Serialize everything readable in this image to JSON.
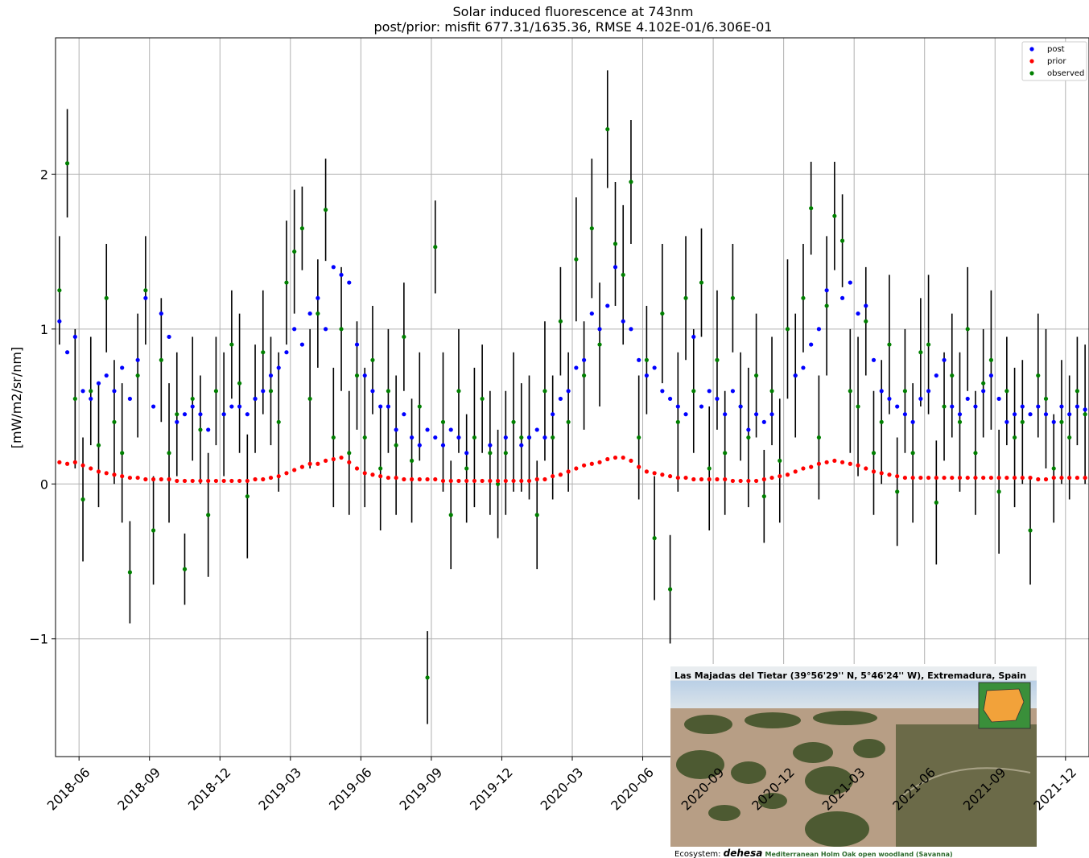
{
  "chart_data": {
    "type": "scatter",
    "title": "Solar induced fluorescence at 743nm",
    "subtitle": "post/prior: misfit 677.31/1635.36, RMSE 4.102E-01/6.306E-01",
    "y_label": "[mW/m2/sr/nm]",
    "x": [
      "2018-05",
      "2018-05",
      "2018-05",
      "2018-06",
      "2018-06",
      "2018-06",
      "2018-07",
      "2018-07",
      "2018-07",
      "2018-08",
      "2018-08",
      "2018-08",
      "2018-09",
      "2018-09",
      "2018-09",
      "2018-10",
      "2018-10",
      "2018-10",
      "2018-11",
      "2018-11",
      "2018-11",
      "2018-12",
      "2018-12",
      "2018-12",
      "2019-01",
      "2019-01",
      "2019-01",
      "2019-02",
      "2019-02",
      "2019-02",
      "2019-03",
      "2019-03",
      "2019-03",
      "2019-04",
      "2019-04",
      "2019-04",
      "2019-05",
      "2019-05",
      "2019-05",
      "2019-06",
      "2019-06",
      "2019-06",
      "2019-07",
      "2019-07",
      "2019-07",
      "2019-08",
      "2019-08",
      "2019-08",
      "2019-09",
      "2019-09",
      "2019-09",
      "2019-10",
      "2019-10",
      "2019-10",
      "2019-11",
      "2019-11",
      "2019-11",
      "2019-12",
      "2019-12",
      "2019-12",
      "2020-01",
      "2020-01",
      "2020-01",
      "2020-02",
      "2020-02",
      "2020-02",
      "2020-03",
      "2020-03",
      "2020-03",
      "2020-04",
      "2020-04",
      "2020-04",
      "2020-05",
      "2020-05",
      "2020-05",
      "2020-06",
      "2020-06",
      "2020-06",
      "2020-07",
      "2020-07",
      "2020-07",
      "2020-08",
      "2020-08",
      "2020-08",
      "2020-09",
      "2020-09",
      "2020-09",
      "2020-10",
      "2020-10",
      "2020-10",
      "2020-11",
      "2020-11",
      "2020-11",
      "2020-12",
      "2020-12",
      "2020-12",
      "2021-01",
      "2021-01",
      "2021-01",
      "2021-02",
      "2021-02",
      "2021-02",
      "2021-03",
      "2021-03",
      "2021-03",
      "2021-04",
      "2021-04",
      "2021-04",
      "2021-05",
      "2021-05",
      "2021-05",
      "2021-06",
      "2021-06",
      "2021-06",
      "2021-07",
      "2021-07",
      "2021-07",
      "2021-08",
      "2021-08",
      "2021-08",
      "2021-09",
      "2021-09",
      "2021-09",
      "2021-10",
      "2021-10",
      "2021-10",
      "2021-11",
      "2021-11",
      "2021-11",
      "2021-12",
      "2021-12",
      "2021-12"
    ],
    "series": [
      {
        "name": "post",
        "color": "#0000ff",
        "values": [
          1.05,
          0.85,
          0.95,
          0.6,
          0.55,
          0.65,
          0.7,
          0.6,
          0.75,
          0.55,
          0.8,
          1.2,
          0.5,
          1.1,
          0.95,
          0.4,
          0.45,
          0.5,
          0.45,
          0.35,
          null,
          0.45,
          0.5,
          0.5,
          0.45,
          0.55,
          0.6,
          0.7,
          0.75,
          0.85,
          1.0,
          0.9,
          1.1,
          1.2,
          1.0,
          1.4,
          1.35,
          1.3,
          0.9,
          0.7,
          0.6,
          0.5,
          0.5,
          0.35,
          0.45,
          0.3,
          0.25,
          0.35,
          0.3,
          0.25,
          0.35,
          0.3,
          0.2,
          null,
          null,
          0.25,
          null,
          0.3,
          null,
          0.25,
          0.3,
          0.35,
          0.3,
          0.45,
          0.55,
          0.6,
          0.75,
          0.8,
          1.1,
          1.0,
          1.15,
          1.4,
          1.05,
          1.0,
          0.8,
          0.7,
          0.75,
          0.6,
          0.55,
          0.5,
          0.45,
          0.95,
          0.5,
          0.6,
          0.55,
          0.45,
          0.6,
          0.5,
          0.35,
          0.45,
          0.4,
          0.45,
          null,
          null,
          0.7,
          0.75,
          0.9,
          1.0,
          1.25,
          null,
          1.2,
          1.3,
          1.1,
          1.15,
          0.8,
          0.6,
          0.55,
          0.5,
          0.45,
          0.4,
          0.55,
          0.6,
          0.7,
          0.8,
          0.5,
          0.45,
          0.55,
          0.5,
          0.6,
          0.7,
          0.55,
          0.4,
          0.45,
          0.5,
          0.45,
          0.5,
          0.45,
          0.4,
          0.5,
          0.45,
          0.5,
          0.48
        ]
      },
      {
        "name": "prior",
        "color": "#ff0000",
        "values": [
          0.14,
          0.13,
          0.14,
          0.12,
          0.1,
          0.08,
          0.07,
          0.06,
          0.05,
          0.04,
          0.04,
          0.03,
          0.03,
          0.03,
          0.03,
          0.02,
          0.02,
          0.02,
          0.02,
          0.02,
          0.02,
          0.02,
          0.02,
          0.02,
          0.02,
          0.03,
          0.03,
          0.04,
          0.05,
          0.07,
          0.09,
          0.11,
          0.13,
          0.13,
          0.15,
          0.16,
          0.17,
          0.14,
          0.1,
          0.07,
          0.06,
          0.05,
          0.04,
          0.04,
          0.03,
          0.03,
          0.03,
          0.03,
          0.03,
          0.02,
          0.02,
          0.02,
          0.02,
          0.02,
          0.02,
          0.02,
          0.02,
          0.02,
          0.02,
          0.02,
          0.02,
          0.03,
          0.03,
          0.05,
          0.06,
          0.08,
          0.1,
          0.12,
          0.13,
          0.14,
          0.16,
          0.17,
          0.17,
          0.15,
          0.11,
          0.08,
          0.07,
          0.06,
          0.05,
          0.04,
          0.04,
          0.03,
          0.03,
          0.03,
          0.03,
          0.03,
          0.02,
          0.02,
          0.02,
          0.02,
          0.03,
          0.04,
          0.05,
          0.06,
          0.08,
          0.1,
          0.11,
          0.13,
          0.14,
          0.15,
          0.14,
          0.13,
          0.12,
          0.1,
          0.08,
          0.07,
          0.06,
          0.05,
          0.04,
          0.04,
          0.04,
          0.04,
          0.04,
          0.04,
          0.04,
          0.04,
          0.04,
          0.04,
          0.04,
          0.04,
          0.04,
          0.04,
          0.04,
          0.04,
          0.04,
          0.03,
          0.03,
          0.04,
          0.04,
          0.04,
          0.04,
          0.04
        ]
      },
      {
        "name": "observed",
        "color": "#008000",
        "values": [
          1.25,
          2.07,
          0.55,
          -0.1,
          0.6,
          0.25,
          1.2,
          0.4,
          0.2,
          -0.57,
          0.7,
          1.25,
          -0.3,
          0.8,
          0.2,
          0.45,
          -0.55,
          0.55,
          0.35,
          -0.2,
          0.6,
          0.45,
          0.9,
          0.65,
          -0.08,
          0.55,
          0.85,
          0.6,
          0.4,
          1.3,
          1.5,
          1.65,
          0.55,
          1.1,
          1.77,
          0.3,
          1.0,
          0.2,
          0.7,
          0.3,
          0.8,
          0.1,
          0.6,
          0.25,
          0.95,
          0.15,
          0.5,
          -1.25,
          1.53,
          0.4,
          -0.2,
          0.6,
          0.1,
          0.3,
          0.55,
          0.2,
          0.0,
          0.2,
          0.4,
          0.3,
          0.3,
          -0.2,
          0.6,
          0.3,
          1.05,
          0.4,
          1.45,
          0.7,
          1.65,
          0.9,
          2.29,
          1.55,
          1.35,
          1.95,
          0.3,
          0.8,
          -0.35,
          1.1,
          -0.68,
          0.4,
          1.2,
          0.6,
          1.3,
          0.1,
          0.8,
          0.2,
          1.2,
          0.5,
          0.3,
          0.7,
          -0.08,
          0.6,
          0.15,
          1.0,
          0.7,
          1.2,
          1.78,
          0.3,
          1.15,
          1.73,
          1.57,
          0.6,
          0.5,
          1.05,
          0.2,
          0.4,
          0.9,
          -0.05,
          0.6,
          0.2,
          0.85,
          0.9,
          -0.12,
          0.5,
          0.7,
          0.4,
          1.0,
          0.2,
          0.65,
          0.8,
          -0.05,
          0.6,
          0.3,
          0.4,
          -0.3,
          0.7,
          0.55,
          0.1,
          0.4,
          0.3,
          0.6,
          0.45
        ],
        "errors": [
          0.35,
          0.35,
          0.45,
          0.4,
          0.35,
          0.4,
          0.35,
          0.4,
          0.45,
          0.33,
          0.4,
          0.35,
          0.35,
          0.4,
          0.45,
          0.4,
          0.23,
          0.4,
          0.35,
          0.4,
          0.35,
          0.4,
          0.35,
          0.45,
          0.4,
          0.35,
          0.4,
          0.35,
          0.45,
          0.4,
          0.4,
          0.27,
          0.45,
          0.35,
          0.33,
          0.45,
          0.4,
          0.4,
          0.35,
          0.45,
          0.35,
          0.4,
          0.4,
          0.45,
          0.35,
          0.4,
          0.35,
          0.3,
          0.3,
          0.45,
          0.35,
          0.4,
          0.35,
          0.45,
          0.35,
          0.4,
          0.35,
          0.4,
          0.45,
          0.35,
          0.4,
          0.35,
          0.45,
          0.4,
          0.35,
          0.45,
          0.4,
          0.35,
          0.45,
          0.4,
          0.38,
          0.4,
          0.45,
          0.4,
          0.4,
          0.35,
          0.4,
          0.45,
          0.35,
          0.45,
          0.4,
          0.4,
          0.35,
          0.4,
          0.45,
          0.4,
          0.35,
          0.35,
          0.45,
          0.4,
          0.3,
          0.35,
          0.4,
          0.45,
          0.4,
          0.35,
          0.3,
          0.4,
          0.45,
          0.35,
          0.3,
          0.4,
          0.45,
          0.35,
          0.4,
          0.4,
          0.45,
          0.35,
          0.4,
          0.45,
          0.35,
          0.45,
          0.4,
          0.35,
          0.4,
          0.45,
          0.4,
          0.4,
          0.35,
          0.45,
          0.4,
          0.35,
          0.45,
          0.4,
          0.35,
          0.4,
          0.45,
          0.35,
          0.4,
          0.4,
          0.35,
          0.45
        ]
      }
    ],
    "xlim": [
      "2018-05",
      "2021-12"
    ],
    "xticks": [
      "2018-06",
      "2018-09",
      "2018-12",
      "2019-03",
      "2019-06",
      "2019-09",
      "2019-12",
      "2020-03",
      "2020-06",
      "2020-09",
      "2020-12",
      "2021-03",
      "2021-06",
      "2021-09",
      "2021-12"
    ],
    "ylim": [
      -1.76,
      2.88
    ],
    "yticks": [
      {
        "value": -1,
        "label": "−1"
      },
      0,
      1,
      2
    ],
    "grid": true,
    "legend": "upper right",
    "errorbar_color": "#000000"
  },
  "inset": {
    "title": "Las Majadas del Tietar (39°56'29'' N, 5°46'24'' W), Extremadura, Spain",
    "caption_prefix": "Ecosystem:",
    "caption_term": "dehesa",
    "caption_text": "Mediterranean Holm Oak open woodland (Savanna)"
  }
}
